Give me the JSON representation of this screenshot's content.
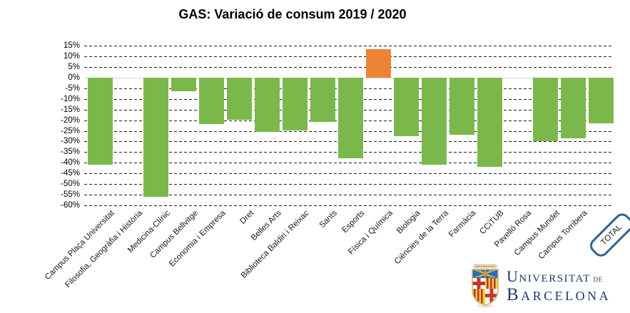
{
  "title": "GAS: Variació de consum 2019 / 2020",
  "chart_data": {
    "type": "bar",
    "title": "GAS: Variació de consum 2019 / 2020",
    "categories": [
      "Campus Plaça Universitat",
      "Filosofia, Geogràfia i Història",
      "Medicina-Clínic",
      "Campus Bellvitge",
      "Economia i Empresa",
      "Dret",
      "Belles Arts",
      "Biblioteca Baldiri i Reixac",
      "Sants",
      "Esports",
      "Física i Química",
      "Biologia",
      "Ciències de la Terra",
      "Farmàcia",
      "CCiTUB",
      "Pavelló Rosa",
      "Campus Mundet",
      "Campus Torribera",
      "TOTAL"
    ],
    "values": [
      -41,
      0,
      -56,
      -6.5,
      -22,
      -20,
      -25.5,
      -25,
      -21,
      -38,
      13.5,
      -27.5,
      -41,
      -27,
      -42,
      0,
      -30,
      -28.5,
      -21.5
    ],
    "unit": "%",
    "ylim": [
      -60,
      15
    ],
    "ytick_step": 5,
    "yticks": [
      "15%",
      "10%",
      "5%",
      "0%",
      "-5%",
      "-10%",
      "-15%",
      "-20%",
      "-25%",
      "-30%",
      "-35%",
      "-40%",
      "-45%",
      "-50%",
      "-55%",
      "-60%"
    ],
    "grid": "dashed",
    "legend": "none",
    "bar_colors": {
      "positive": "#ED8433",
      "negative": "#7BB84C"
    },
    "zero_line_color": "#D9D9D9",
    "highlighted_category": "TOTAL",
    "highlight_box_color": "#31618F"
  },
  "logo": {
    "name": "Universitat de Barcelona",
    "word1": "Universitat",
    "word2": "de",
    "word3": "Barcelona",
    "text_color": "#1F3A68"
  }
}
